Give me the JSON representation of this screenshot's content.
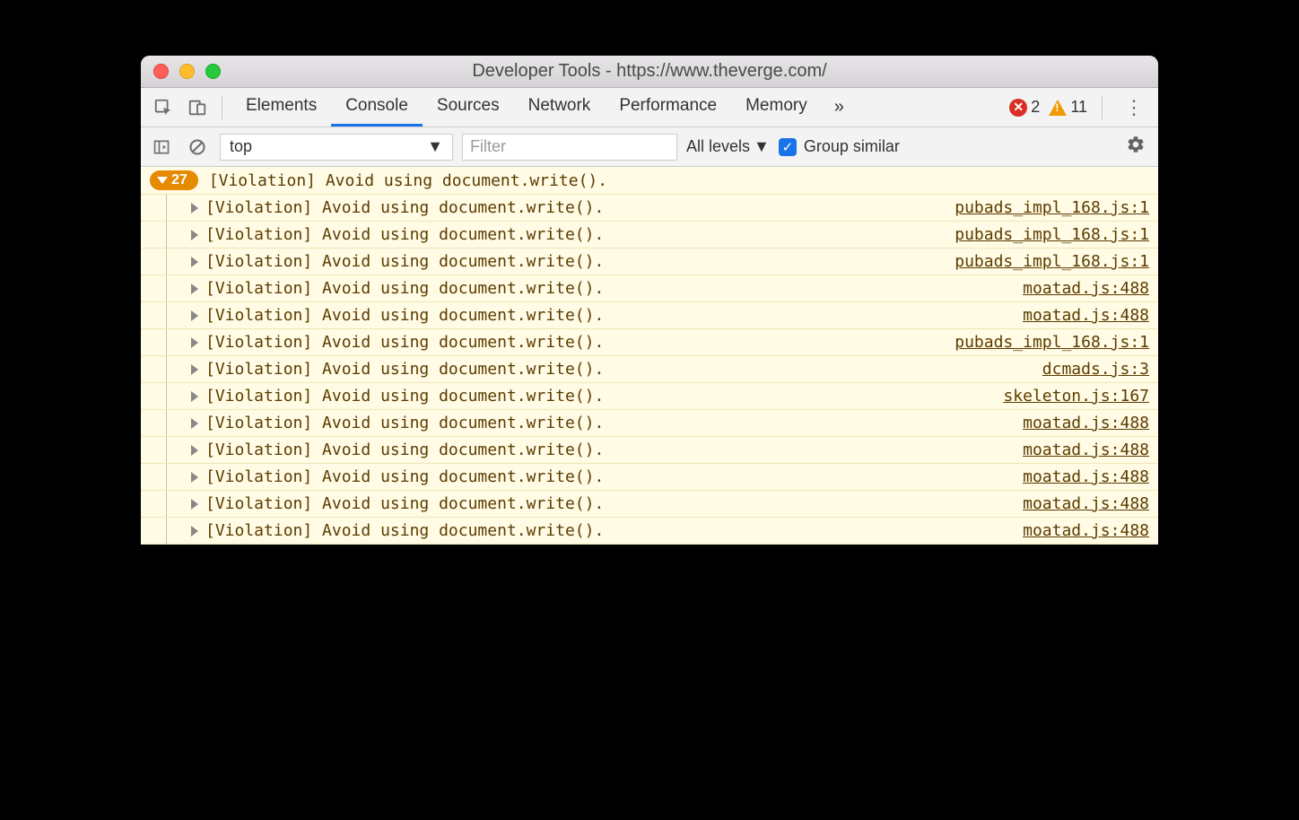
{
  "window": {
    "title": "Developer Tools - https://www.theverge.com/"
  },
  "tabs": {
    "items": [
      "Elements",
      "Console",
      "Sources",
      "Network",
      "Performance",
      "Memory"
    ],
    "active_index": 1,
    "more_glyph": "»"
  },
  "status_badges": {
    "error_count": "2",
    "warning_count": "11"
  },
  "toolbar": {
    "context": "top",
    "filter_placeholder": "Filter",
    "levels_label": "All levels",
    "group_checked": true,
    "group_label": "Group similar"
  },
  "console": {
    "group": {
      "count": "27",
      "message": "[Violation] Avoid using document.write()."
    },
    "rows": [
      {
        "message": "[Violation] Avoid using document.write().",
        "source": "pubads_impl_168.js:1"
      },
      {
        "message": "[Violation] Avoid using document.write().",
        "source": "pubads_impl_168.js:1"
      },
      {
        "message": "[Violation] Avoid using document.write().",
        "source": "pubads_impl_168.js:1"
      },
      {
        "message": "[Violation] Avoid using document.write().",
        "source": "moatad.js:488"
      },
      {
        "message": "[Violation] Avoid using document.write().",
        "source": "moatad.js:488"
      },
      {
        "message": "[Violation] Avoid using document.write().",
        "source": "pubads_impl_168.js:1"
      },
      {
        "message": "[Violation] Avoid using document.write().",
        "source": "dcmads.js:3"
      },
      {
        "message": "[Violation] Avoid using document.write().",
        "source": "skeleton.js:167"
      },
      {
        "message": "[Violation] Avoid using document.write().",
        "source": "moatad.js:488"
      },
      {
        "message": "[Violation] Avoid using document.write().",
        "source": "moatad.js:488"
      },
      {
        "message": "[Violation] Avoid using document.write().",
        "source": "moatad.js:488"
      },
      {
        "message": "[Violation] Avoid using document.write().",
        "source": "moatad.js:488"
      },
      {
        "message": "[Violation] Avoid using document.write().",
        "source": "moatad.js:488"
      }
    ]
  },
  "colors": {
    "window_bg": "#ffffff",
    "titlebar_top": "#e8e6e8",
    "titlebar_bottom": "#d4d2d4",
    "tab_active_underline": "#1a73e8",
    "console_bg": "#fffbe5",
    "console_text": "#5c3c00",
    "count_badge_bg": "#e68a00",
    "error_badge_bg": "#d93025",
    "warning_badge_bg": "#f29900",
    "row_border": "#f0e6b8"
  }
}
